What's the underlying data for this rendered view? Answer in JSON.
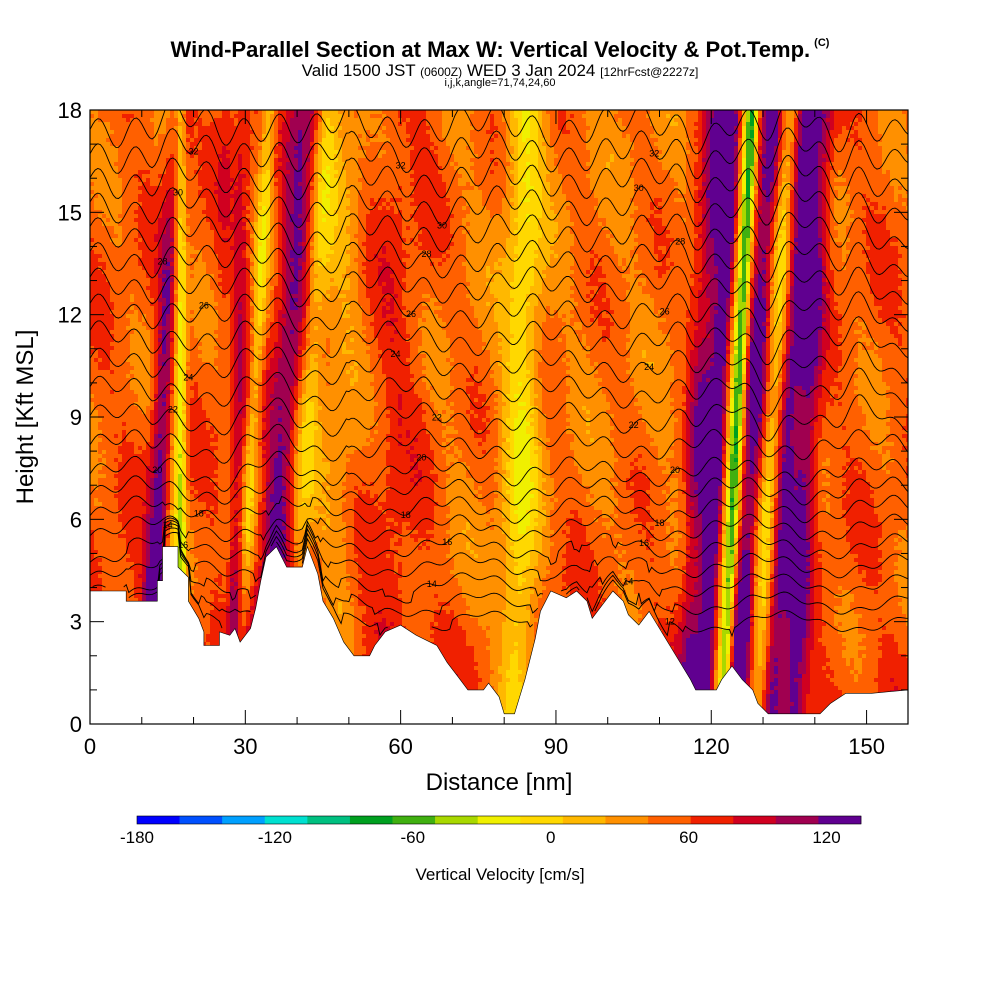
{
  "header": {
    "title": "Wind-Parallel Section at Max W: Vertical Velocity & Pot.Temp.",
    "copyright": "(C)",
    "valid_prefix": "Valid 1500 JST",
    "valid_utc": "(0600Z)",
    "valid_date": "WED 3 Jan 2024",
    "forecast": "[12hrFcst@2227z]",
    "indices": "i,j,k,angle=71,74,24,60"
  },
  "colors": {
    "background": "#ffffff",
    "contour": "#000000",
    "terrain": "#ffffff",
    "palette": [
      "#0000ff",
      "#0050ff",
      "#00a0ff",
      "#00e0d0",
      "#00c080",
      "#00a020",
      "#40b010",
      "#a8d800",
      "#f0f000",
      "#ffd800",
      "#ffb800",
      "#ff9000",
      "#ff6000",
      "#f02000",
      "#d00020",
      "#a00050",
      "#600090"
    ]
  },
  "chart_data": {
    "type": "heatmap",
    "title": "Wind-Parallel Section at Max W: Vertical Velocity & Pot.Temp.",
    "xlabel": "Distance [nm]",
    "ylabel": "Height [Kft MSL]",
    "xlim": [
      0,
      158
    ],
    "ylim": [
      0,
      18
    ],
    "x_ticks": [
      0,
      30,
      60,
      90,
      120,
      150
    ],
    "y_ticks": [
      0,
      3,
      6,
      9,
      12,
      15,
      18
    ],
    "grid": false,
    "colorbar": {
      "label": "Vertical Velocity [cm/s]",
      "min": -180,
      "max": 135,
      "step": 15,
      "tick_values": [
        -180,
        -120,
        -60,
        0,
        60,
        120
      ],
      "placement": "bottom"
    },
    "terrain_kft": [
      [
        0,
        3.9
      ],
      [
        7,
        3.9
      ],
      [
        7,
        3.6
      ],
      [
        13,
        3.6
      ],
      [
        13,
        4.2
      ],
      [
        14,
        4.2
      ],
      [
        14,
        5.2
      ],
      [
        17,
        5.2
      ],
      [
        17,
        4.6
      ],
      [
        19,
        4.3
      ],
      [
        19,
        3.6
      ],
      [
        21,
        3.1
      ],
      [
        22,
        2.7
      ],
      [
        22,
        2.3
      ],
      [
        25,
        2.3
      ],
      [
        25,
        2.7
      ],
      [
        27,
        2.6
      ],
      [
        28,
        2.8
      ],
      [
        29,
        2.4
      ],
      [
        31,
        2.8
      ],
      [
        32,
        3.4
      ],
      [
        33,
        4.2
      ],
      [
        34,
        4.9
      ],
      [
        36,
        5.2
      ],
      [
        38,
        4.6
      ],
      [
        41,
        4.6
      ],
      [
        42,
        5.2
      ],
      [
        44,
        4.4
      ],
      [
        45,
        3.6
      ],
      [
        47,
        3.1
      ],
      [
        49,
        2.4
      ],
      [
        51,
        2.0
      ],
      [
        54,
        2.0
      ],
      [
        55,
        2.3
      ],
      [
        57,
        2.7
      ],
      [
        60,
        2.9
      ],
      [
        63,
        2.6
      ],
      [
        67,
        2.3
      ],
      [
        69,
        1.8
      ],
      [
        71,
        1.4
      ],
      [
        73,
        1.0
      ],
      [
        76,
        1.0
      ],
      [
        77,
        1.2
      ],
      [
        79,
        0.8
      ],
      [
        80,
        0.3
      ],
      [
        82,
        0.3
      ],
      [
        83,
        0.8
      ],
      [
        84,
        1.3
      ],
      [
        86,
        2.5
      ],
      [
        87,
        3.3
      ],
      [
        89,
        3.9
      ],
      [
        92,
        3.7
      ],
      [
        94,
        3.9
      ],
      [
        96,
        3.6
      ],
      [
        97,
        3.1
      ],
      [
        98,
        3.3
      ],
      [
        101,
        3.9
      ],
      [
        103,
        3.6
      ],
      [
        104,
        3.2
      ],
      [
        106,
        2.9
      ],
      [
        108,
        3.3
      ],
      [
        110,
        2.8
      ],
      [
        112,
        2.3
      ],
      [
        114,
        1.8
      ],
      [
        116,
        1.3
      ],
      [
        117,
        1.0
      ],
      [
        121,
        1.0
      ],
      [
        122,
        1.3
      ],
      [
        124,
        1.7
      ],
      [
        126,
        1.3
      ],
      [
        128,
        1.0
      ],
      [
        129,
        0.6
      ],
      [
        131,
        0.3
      ],
      [
        141,
        0.3
      ],
      [
        143,
        0.6
      ],
      [
        146,
        0.9
      ],
      [
        151,
        0.9
      ],
      [
        158,
        1.0
      ]
    ],
    "velocity_bands": [
      {
        "x_base": 13,
        "dx_per_kft": 0.35,
        "width_nm": 2.0,
        "w": 60
      },
      {
        "x_base": 16.3,
        "dx_per_kft": 0.0,
        "width_nm": 1.4,
        "w": -30
      },
      {
        "x_base": 17.6,
        "dx_per_kft": 0.0,
        "width_nm": 1.0,
        "w": -60
      },
      {
        "x_base": 26.5,
        "dx_per_kft": 0.12,
        "width_nm": 1.4,
        "w": -30
      },
      {
        "x_base": 28.0,
        "dx_per_kft": 0.0,
        "width_nm": 2.4,
        "w": 45
      },
      {
        "x_base": 30.5,
        "dx_per_kft": 0.35,
        "width_nm": 1.4,
        "w": -45
      },
      {
        "x_base": 36.5,
        "dx_per_kft": 0.45,
        "width_nm": 3.5,
        "w": 55
      },
      {
        "x_base": 40.5,
        "dx_per_kft": 0.45,
        "width_nm": 2.5,
        "w": -45
      },
      {
        "x_base": 47.5,
        "dx_per_kft": 0.2,
        "width_nm": 4.0,
        "w": -20
      },
      {
        "x_base": 60,
        "dx_per_kft": 0.1,
        "width_nm": 6.0,
        "w": 15
      },
      {
        "x_base": 83,
        "dx_per_kft": 0.1,
        "width_nm": 3.5,
        "w": -45
      },
      {
        "x_base": 117,
        "dx_per_kft": 0.32,
        "width_nm": 2.5,
        "w": 45
      },
      {
        "x_base": 120.5,
        "dx_per_kft": 0.32,
        "width_nm": 2.0,
        "w": 75
      },
      {
        "x_base": 123,
        "dx_per_kft": 0.32,
        "width_nm": 1.8,
        "w": -45
      },
      {
        "x_base": 124.2,
        "dx_per_kft": 0.32,
        "width_nm": 1.2,
        "w": -75
      },
      {
        "x_base": 127.5,
        "dx_per_kft": 0.38,
        "width_nm": 2.5,
        "w": 75
      },
      {
        "x_base": 130.5,
        "dx_per_kft": 0.38,
        "width_nm": 2.5,
        "w": -60
      },
      {
        "x_base": 133.5,
        "dx_per_kft": 0.36,
        "width_nm": 2.0,
        "w": 60
      },
      {
        "x_base": 137.5,
        "dx_per_kft": 0.3,
        "width_nm": 2.5,
        "w": 60
      }
    ],
    "theta_contours": {
      "levels": [
        12,
        13,
        14,
        15,
        16,
        17,
        18,
        19,
        20,
        21,
        22,
        23,
        24,
        25,
        26,
        27,
        28,
        29,
        30,
        31,
        32,
        33
      ],
      "labeled": [
        12,
        14,
        16,
        18,
        20,
        22,
        24,
        26,
        28,
        30,
        32
      ]
    }
  }
}
